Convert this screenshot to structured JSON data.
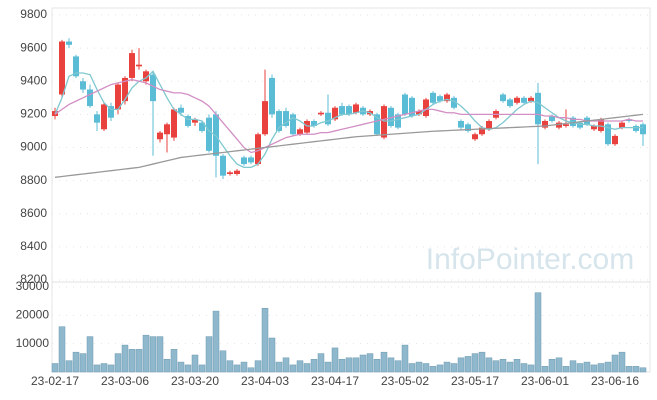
{
  "chart_data": {
    "type": "candlestick",
    "watermark": "InfoPointer.com",
    "categories": [
      "23-02-17",
      null,
      null,
      null,
      null,
      null,
      null,
      null,
      null,
      null,
      "23-03-06",
      null,
      null,
      null,
      null,
      null,
      null,
      null,
      null,
      null,
      "23-03-20",
      null,
      null,
      null,
      null,
      null,
      null,
      null,
      null,
      null,
      "23-04-03",
      null,
      null,
      null,
      null,
      null,
      null,
      null,
      null,
      null,
      "23-04-17",
      null,
      null,
      null,
      null,
      null,
      null,
      null,
      null,
      null,
      "23-05-02",
      null,
      null,
      null,
      null,
      null,
      null,
      null,
      null,
      null,
      "23-05-17",
      null,
      null,
      null,
      null,
      null,
      null,
      null,
      null,
      null,
      "23-06-01",
      null,
      null,
      null,
      null,
      null,
      null,
      null,
      null,
      null,
      "23-06-16",
      null,
      null,
      null,
      null
    ],
    "ohlc": [
      [
        9190,
        9240,
        9170,
        9220
      ],
      [
        9320,
        9650,
        9300,
        9640
      ],
      [
        9640,
        9660,
        9600,
        9620
      ],
      [
        9550,
        9560,
        9420,
        9430
      ],
      [
        9400,
        9420,
        9330,
        9350
      ],
      [
        9350,
        9380,
        9240,
        9250
      ],
      [
        9200,
        9220,
        9100,
        9150
      ],
      [
        9110,
        9270,
        9100,
        9260
      ],
      [
        9250,
        9270,
        9160,
        9180
      ],
      [
        9230,
        9390,
        9200,
        9380
      ],
      [
        9280,
        9430,
        9260,
        9420
      ],
      [
        9420,
        9590,
        9400,
        9570
      ],
      [
        9490,
        9600,
        9470,
        9500
      ],
      [
        9400,
        9470,
        9380,
        9460
      ],
      [
        9440,
        9460,
        8950,
        9280
      ],
      [
        9050,
        9100,
        9030,
        9090
      ],
      [
        9080,
        9150,
        8970,
        9140
      ],
      [
        9060,
        9240,
        9040,
        9230
      ],
      [
        9240,
        9260,
        9190,
        9210
      ],
      [
        9190,
        9200,
        9120,
        9130
      ],
      [
        9150,
        9180,
        9130,
        9170
      ],
      [
        9150,
        9160,
        9090,
        9100
      ],
      [
        9180,
        9200,
        8970,
        8980
      ],
      [
        9200,
        9220,
        8820,
        8950
      ],
      [
        8950,
        8960,
        8810,
        8830
      ],
      [
        8840,
        8860,
        8830,
        8850
      ],
      [
        8840,
        8870,
        8830,
        8860
      ],
      [
        8940,
        8950,
        8890,
        8900
      ],
      [
        8940,
        8950,
        8900,
        8910
      ],
      [
        8900,
        9090,
        8890,
        9080
      ],
      [
        9080,
        9470,
        9070,
        9280
      ],
      [
        9420,
        9440,
        9180,
        9200
      ],
      [
        9220,
        9230,
        9090,
        9100
      ],
      [
        9220,
        9240,
        9120,
        9130
      ],
      [
        9200,
        9210,
        9070,
        9080
      ],
      [
        9080,
        9120,
        9070,
        9110
      ],
      [
        9090,
        9170,
        9080,
        9160
      ],
      [
        9160,
        9170,
        9120,
        9130
      ],
      [
        9200,
        9220,
        9190,
        9210
      ],
      [
        9210,
        9320,
        9130,
        9140
      ],
      [
        9170,
        9250,
        9160,
        9240
      ],
      [
        9250,
        9270,
        9190,
        9200
      ],
      [
        9250,
        9260,
        9190,
        9200
      ],
      [
        9210,
        9270,
        9200,
        9260
      ],
      [
        9240,
        9250,
        9190,
        9200
      ],
      [
        9200,
        9230,
        9190,
        9220
      ],
      [
        9200,
        9210,
        9070,
        9080
      ],
      [
        9060,
        9260,
        9050,
        9250
      ],
      [
        9240,
        9250,
        9120,
        9130
      ],
      [
        9200,
        9210,
        9110,
        9120
      ],
      [
        9320,
        9330,
        9190,
        9200
      ],
      [
        9300,
        9310,
        9180,
        9190
      ],
      [
        9200,
        9230,
        9190,
        9220
      ],
      [
        9190,
        9300,
        9180,
        9290
      ],
      [
        9330,
        9340,
        9260,
        9270
      ],
      [
        9310,
        9320,
        9270,
        9280
      ],
      [
        9280,
        9330,
        9270,
        9320
      ],
      [
        9300,
        9310,
        9230,
        9240
      ],
      [
        9160,
        9170,
        9110,
        9120
      ],
      [
        9140,
        9150,
        9090,
        9100
      ],
      [
        9050,
        9090,
        9040,
        9080
      ],
      [
        9080,
        9130,
        9070,
        9120
      ],
      [
        9110,
        9170,
        9100,
        9160
      ],
      [
        9180,
        9230,
        9170,
        9220
      ],
      [
        9320,
        9330,
        9270,
        9280
      ],
      [
        9290,
        9300,
        9240,
        9250
      ],
      [
        9270,
        9310,
        9260,
        9300
      ],
      [
        9300,
        9310,
        9260,
        9270
      ],
      [
        9280,
        9310,
        9270,
        9300
      ],
      [
        9330,
        9390,
        8900,
        9140
      ],
      [
        9120,
        9170,
        9110,
        9160
      ],
      [
        9190,
        9200,
        9150,
        9160
      ],
      [
        9120,
        9160,
        9110,
        9150
      ],
      [
        9130,
        9230,
        9120,
        9140
      ],
      [
        9180,
        9190,
        9120,
        9130
      ],
      [
        9150,
        9160,
        9110,
        9120
      ],
      [
        9180,
        9190,
        9130,
        9140
      ],
      [
        9110,
        9140,
        9100,
        9130
      ],
      [
        9100,
        9180,
        9090,
        9170
      ],
      [
        9140,
        9150,
        9010,
        9020
      ],
      [
        9020,
        9080,
        9010,
        9070
      ],
      [
        9120,
        9160,
        9110,
        9150
      ],
      [
        9170,
        9180,
        9150,
        9160
      ],
      [
        9130,
        9140,
        9090,
        9100
      ],
      [
        9140,
        9150,
        9010,
        9080
      ]
    ],
    "up_color": "#e8413e",
    "down_color": "#5bbcd6",
    "ylim": [
      8200,
      9800
    ],
    "yticks": [
      8200,
      8400,
      8600,
      8800,
      9000,
      9200,
      9400,
      9600,
      9800
    ],
    "grid": true,
    "series": [
      {
        "color": "#7fc8d0",
        "values": [
          9200,
          9300,
          9430,
          9450,
          9450,
          9440,
          9350,
          9270,
          9230,
          9230,
          9290,
          9360,
          9400,
          9420,
          9460,
          9380,
          9300,
          9230,
          9200,
          9170,
          9170,
          9160,
          9100,
          9070,
          9010,
          8950,
          8900,
          8880,
          8880,
          8900,
          8960,
          9050,
          9120,
          9150,
          9180,
          9160,
          9130,
          9130,
          9150,
          9160,
          9180,
          9200,
          9200,
          9210,
          9220,
          9210,
          9180,
          9160,
          9160,
          9170,
          9180,
          9190,
          9200,
          9230,
          9260,
          9280,
          9290,
          9280,
          9250,
          9210,
          9160,
          9120,
          9110,
          9120,
          9150,
          9190,
          9230,
          9260,
          9280,
          9270,
          9240,
          9210,
          9180,
          9160,
          9150,
          9140,
          9140,
          9130,
          9130,
          9120,
          9110,
          9120,
          9120,
          9120,
          9120
        ]
      },
      {
        "color": "#d28fc4",
        "values": [
          9200,
          9230,
          9260,
          9280,
          9300,
          9320,
          9340,
          9360,
          9380,
          9390,
          9400,
          9410,
          9400,
          9390,
          9370,
          9350,
          9340,
          9330,
          9330,
          9320,
          9300,
          9280,
          9250,
          9200,
          9150,
          9100,
          9050,
          9000,
          8970,
          8980,
          9000,
          9020,
          9040,
          9060,
          9070,
          9080,
          9080,
          9080,
          9090,
          9090,
          9100,
          9110,
          9120,
          9130,
          9140,
          9150,
          9160,
          9170,
          9180,
          9190,
          9200,
          9210,
          9220,
          9230,
          9230,
          9220,
          9210,
          9210,
          9200,
          9200,
          9200,
          9200,
          9200,
          9200,
          9200,
          9200,
          9200,
          9200,
          9200,
          9200,
          9190,
          9190,
          9180,
          9180,
          9170,
          9170,
          9160,
          9160,
          9160,
          9160,
          9160,
          9160,
          9170,
          9160,
          9160
        ]
      },
      {
        "color": "#999999",
        "values": [
          8820,
          8825,
          8830,
          8835,
          8840,
          8845,
          8850,
          8855,
          8860,
          8865,
          8870,
          8875,
          8880,
          8890,
          8900,
          8910,
          8920,
          8930,
          8940,
          8945,
          8950,
          8955,
          8960,
          8965,
          8970,
          8975,
          8980,
          8985,
          8990,
          8995,
          9000,
          9005,
          9010,
          9015,
          9020,
          9025,
          9030,
          9035,
          9040,
          9045,
          9050,
          9055,
          9060,
          9065,
          9068,
          9071,
          9074,
          9077,
          9080,
          9083,
          9086,
          9089,
          9092,
          9095,
          9098,
          9100,
          9102,
          9104,
          9106,
          9108,
          9110,
          9112,
          9114,
          9116,
          9118,
          9120,
          9122,
          9124,
          9126,
          9128,
          9130,
          9135,
          9140,
          9145,
          9150,
          9155,
          9160,
          9165,
          9170,
          9175,
          9180,
          9185,
          9190,
          9195,
          9200
        ]
      }
    ],
    "volume": {
      "color": "#8fb8cc",
      "ylim": [
        0,
        30000
      ],
      "yticks": [
        10000,
        20000,
        30000
      ],
      "values": [
        3000,
        16000,
        4000,
        7000,
        6500,
        12500,
        2500,
        3000,
        2500,
        6500,
        9500,
        8000,
        8000,
        13000,
        12500,
        12500,
        4500,
        8000,
        3500,
        2500,
        6000,
        2500,
        12500,
        21500,
        7500,
        4000,
        2500,
        3500,
        1500,
        4000,
        22500,
        12000,
        3500,
        5000,
        2500,
        4000,
        3000,
        4500,
        6500,
        3500,
        8500,
        4500,
        5000,
        5000,
        6000,
        6500,
        4500,
        7000,
        5000,
        4000,
        9500,
        3000,
        3500,
        3000,
        2000,
        2500,
        3500,
        3000,
        5000,
        5500,
        6500,
        7000,
        5000,
        4000,
        4500,
        3500,
        4500,
        3000,
        2500,
        28000,
        2000,
        4500,
        5000,
        2000,
        4000,
        3000,
        3500,
        2500,
        3000,
        3500,
        6000,
        7000,
        2000,
        2000,
        1500
      ]
    }
  }
}
